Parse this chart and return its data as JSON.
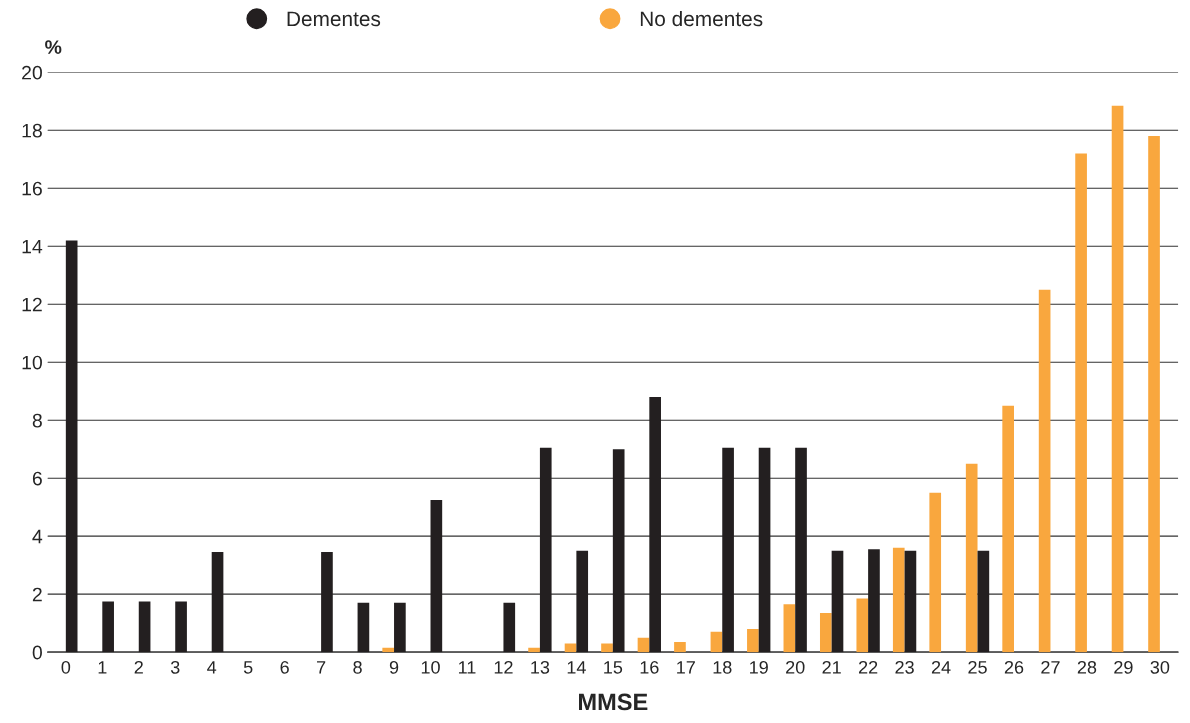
{
  "chart_data": {
    "type": "bar",
    "xlabel": "MMSE",
    "ylabel": "%",
    "categories": [
      "0",
      "1",
      "2",
      "3",
      "4",
      "5",
      "6",
      "7",
      "8",
      "9",
      "10",
      "11",
      "12",
      "13",
      "14",
      "15",
      "16",
      "17",
      "18",
      "19",
      "20",
      "21",
      "22",
      "23",
      "24",
      "25",
      "26",
      "27",
      "28",
      "29",
      "30"
    ],
    "series": [
      {
        "name": "No dementes",
        "color": "#f9a73e",
        "values": [
          0,
          0,
          0,
          0,
          0,
          0,
          0,
          0,
          0,
          0.15,
          0,
          0,
          0,
          0.15,
          0.3,
          0.3,
          0.5,
          0.35,
          0.7,
          0.8,
          1.65,
          1.35,
          1.85,
          3.6,
          5.5,
          6.5,
          8.5,
          12.5,
          17.2,
          18.85,
          17.8
        ]
      },
      {
        "name": "Dementes",
        "color": "#231f20",
        "values": [
          14.2,
          1.75,
          1.75,
          1.75,
          3.45,
          0,
          0,
          3.45,
          1.7,
          1.7,
          5.25,
          0,
          1.7,
          7.05,
          3.5,
          7.0,
          8.8,
          0,
          7.05,
          7.05,
          7.05,
          3.5,
          3.55,
          3.5,
          0,
          3.5,
          0,
          0,
          0,
          0,
          0
        ]
      }
    ],
    "ylim": [
      0,
      20
    ],
    "yticks": [
      0,
      2,
      4,
      6,
      8,
      10,
      12,
      14,
      16,
      18,
      20
    ],
    "grid": "y",
    "legend": "top"
  }
}
